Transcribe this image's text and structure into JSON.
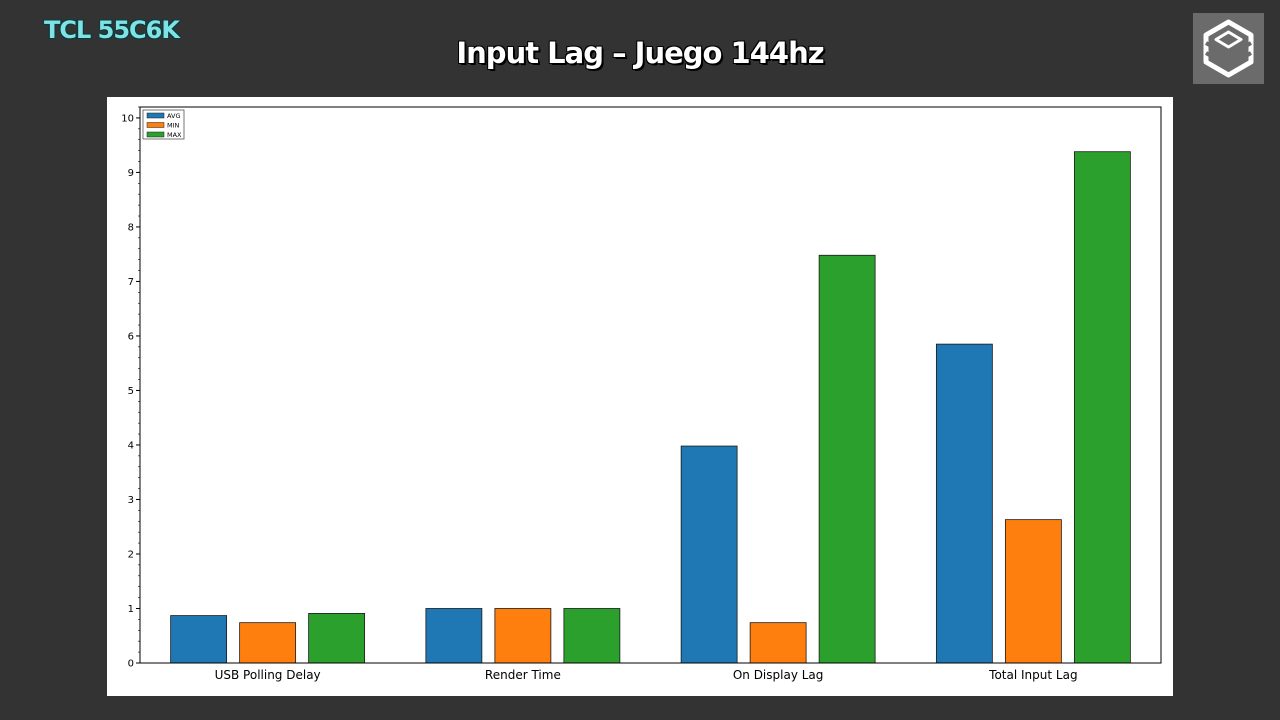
{
  "header": {
    "brand": "TCL 55C6K",
    "title": "Input Lag – Juego 144hz"
  },
  "logo": {
    "icon": "hexagon-layers-icon"
  },
  "chart_data": {
    "type": "bar",
    "title": "",
    "xlabel": "",
    "ylabel": "",
    "categories": [
      "USB Polling Delay",
      "Render Time",
      "On Display Lag",
      "Total Input Lag"
    ],
    "series": [
      {
        "name": "AVG",
        "color": "#1f77b4",
        "values": [
          0.87,
          1.0,
          3.98,
          5.85
        ]
      },
      {
        "name": "MIN",
        "color": "#ff7f0e",
        "values": [
          0.74,
          1.0,
          0.74,
          2.63
        ]
      },
      {
        "name": "MAX",
        "color": "#2ca02c",
        "values": [
          0.91,
          1.0,
          7.48,
          9.38
        ]
      }
    ],
    "ylim": [
      0,
      10.2
    ],
    "yticks": [
      0,
      1,
      2,
      3,
      4,
      5,
      6,
      7,
      8,
      9,
      10
    ],
    "grid": false,
    "legend": "top-left"
  }
}
